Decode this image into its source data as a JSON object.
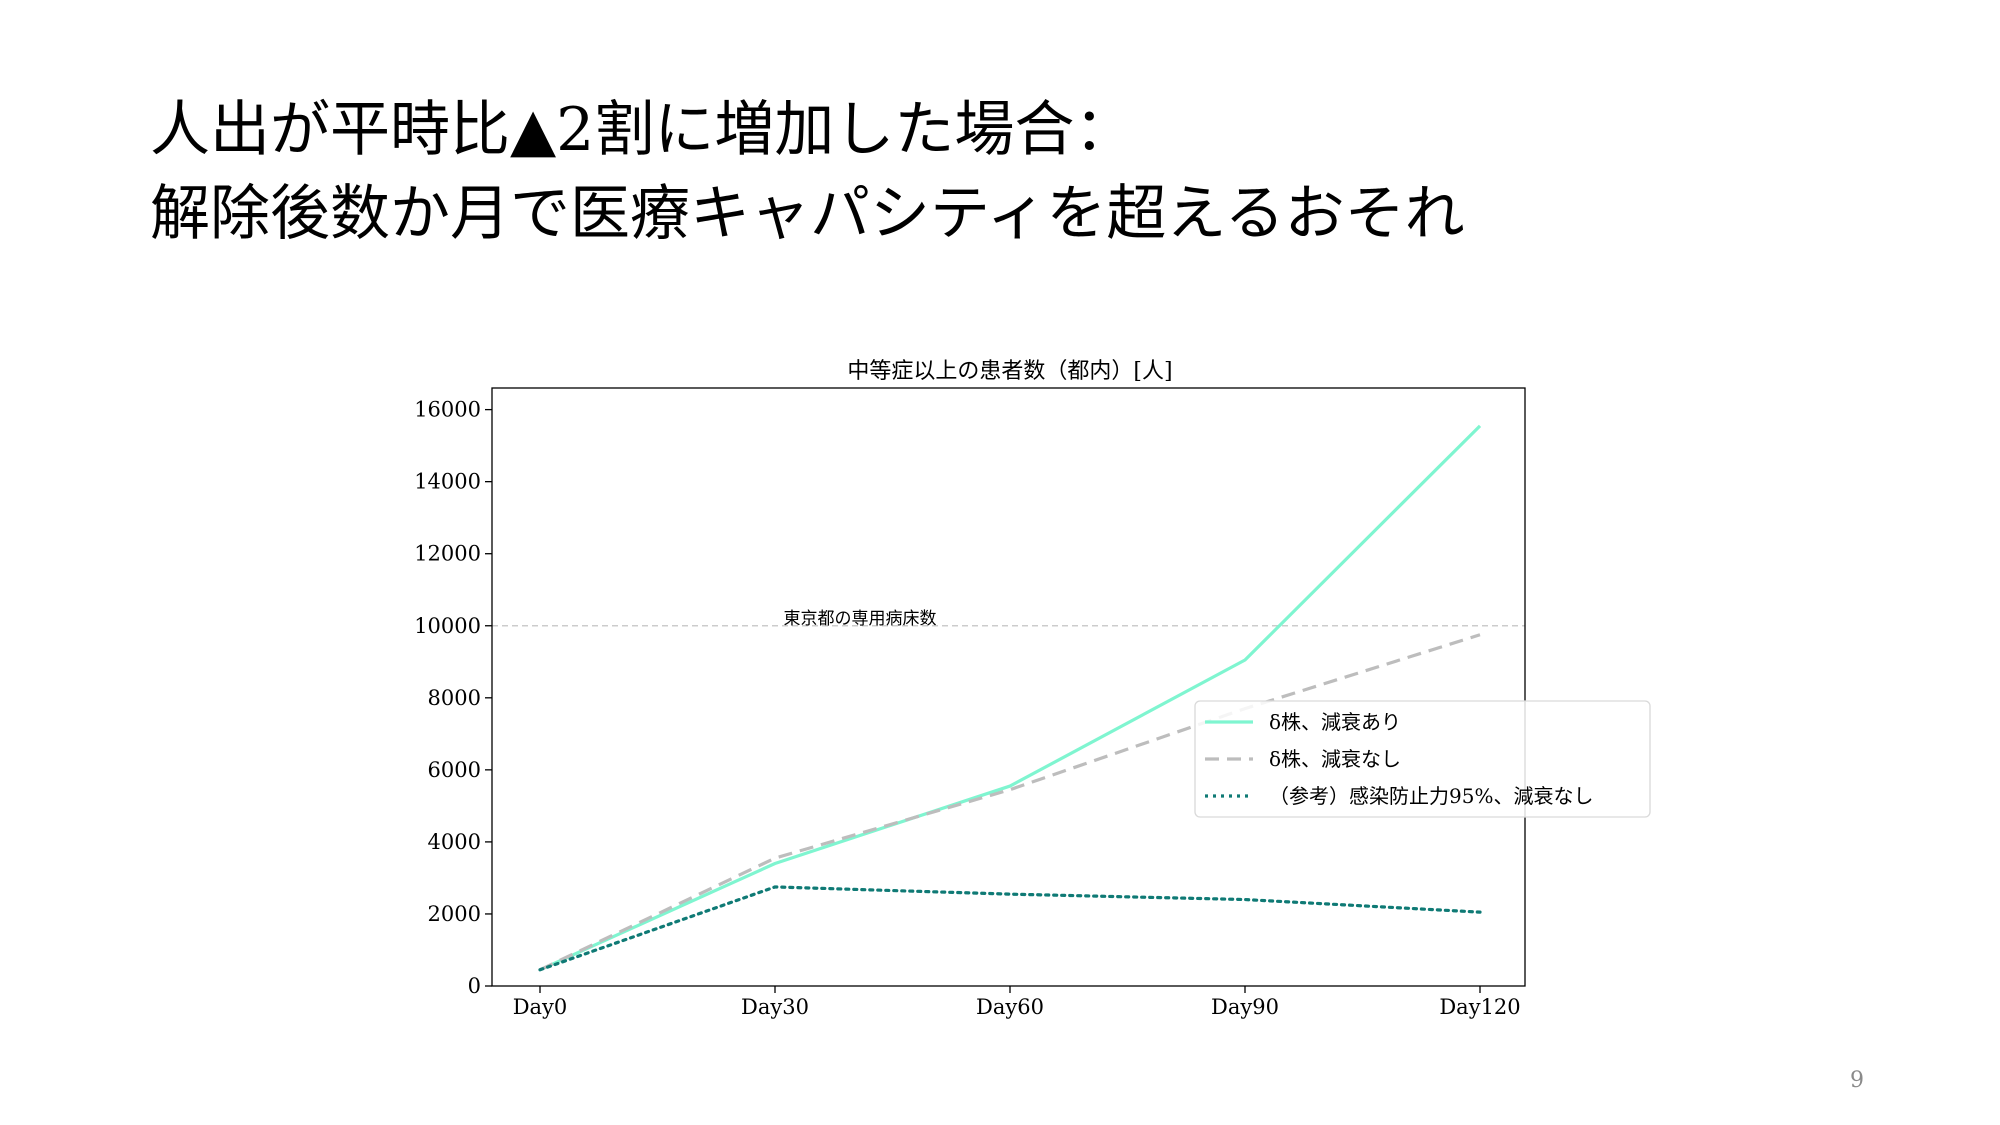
{
  "slide": {
    "title_line1": "人出が平時比▲2割に増加した場合：",
    "title_line2": "解除後数か月で医療キャパシティを超えるおそれ",
    "page_number": "9"
  },
  "chart_data": {
    "type": "line",
    "title": "中等症以上の患者数（都内）[人]",
    "xlabel": "",
    "ylabel": "",
    "categories": [
      "Day0",
      "Day30",
      "Day60",
      "Day90",
      "Day120"
    ],
    "ylim": [
      0,
      16600
    ],
    "yticks": [
      0,
      2000,
      4000,
      6000,
      8000,
      10000,
      12000,
      14000,
      16000
    ],
    "grid": false,
    "legend_position": "center-right",
    "series": [
      {
        "name": "δ株、減衰あり",
        "values": [
          450,
          3400,
          5550,
          9050,
          15550
        ],
        "color": "#7ff5d0",
        "style": "solid"
      },
      {
        "name": "δ株、減衰なし",
        "values": [
          450,
          3550,
          5450,
          7700,
          9750
        ],
        "color": "#bdbdbd",
        "style": "dashed"
      },
      {
        "name": "（参考）感染防止力95%、減衰なし",
        "values": [
          450,
          2750,
          2550,
          2400,
          2050
        ],
        "color": "#0f7a75",
        "style": "dotted"
      }
    ],
    "reference_line": {
      "value": 10000,
      "label": "東京都の専用病床数",
      "color": "#cccccc"
    }
  }
}
